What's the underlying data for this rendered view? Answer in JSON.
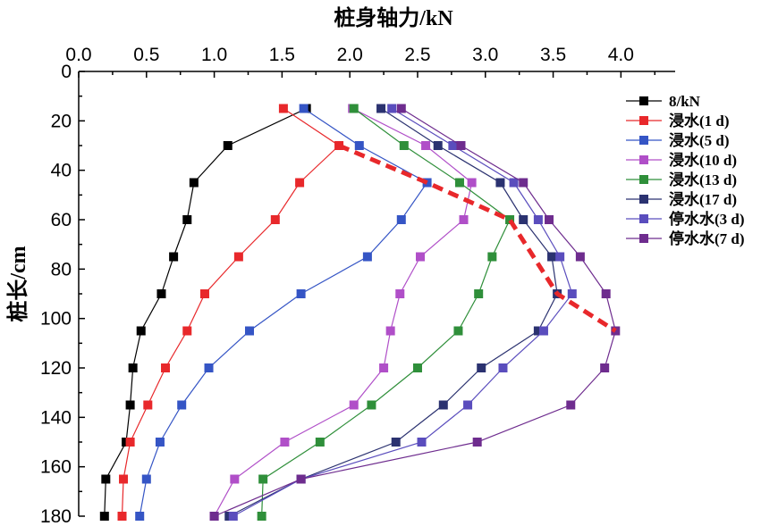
{
  "chart_data": {
    "type": "line",
    "xlabel": "桩身轴力/kN",
    "ylabel": "桩长/cm",
    "xlim": [
      0,
      4.4
    ],
    "ylim": [
      0,
      180
    ],
    "x_axis_position": "top",
    "y_axis_inverted": true,
    "x_ticks": [
      "0.0",
      "0.5",
      "1.0",
      "1.5",
      "2.0",
      "2.5",
      "3.0",
      "3.5",
      "4.0"
    ],
    "x_tick_values": [
      0,
      0.5,
      1.0,
      1.5,
      2.0,
      2.5,
      3.0,
      3.5,
      4.0
    ],
    "y_ticks": [
      "0",
      "20",
      "40",
      "60",
      "80",
      "100",
      "120",
      "140",
      "160",
      "180"
    ],
    "y_tick_values": [
      0,
      20,
      40,
      60,
      80,
      100,
      120,
      140,
      160,
      180
    ],
    "grid": false,
    "legend_position": "right",
    "series": [
      {
        "name": "8/kN",
        "color": "#000000",
        "points": [
          [
            1.68,
            15
          ],
          [
            1.1,
            30
          ],
          [
            0.85,
            45
          ],
          [
            0.8,
            60
          ],
          [
            0.7,
            75
          ],
          [
            0.61,
            90
          ],
          [
            0.46,
            105
          ],
          [
            0.4,
            120
          ],
          [
            0.38,
            135
          ],
          [
            0.35,
            150
          ],
          [
            0.2,
            165
          ],
          [
            0.19,
            180
          ]
        ]
      },
      {
        "name": "浸水(1 d)",
        "color": "#e8282b",
        "points": [
          [
            1.51,
            15
          ],
          [
            1.92,
            30
          ],
          [
            1.63,
            45
          ],
          [
            1.45,
            60
          ],
          [
            1.18,
            75
          ],
          [
            0.93,
            90
          ],
          [
            0.8,
            105
          ],
          [
            0.64,
            120
          ],
          [
            0.51,
            135
          ],
          [
            0.38,
            150
          ],
          [
            0.33,
            165
          ],
          [
            0.32,
            180
          ]
        ]
      },
      {
        "name": "浸水(5 d)",
        "color": "#3555c5",
        "points": [
          [
            1.66,
            15
          ],
          [
            2.07,
            30
          ],
          [
            2.57,
            45
          ],
          [
            2.38,
            60
          ],
          [
            2.13,
            75
          ],
          [
            1.64,
            90
          ],
          [
            1.26,
            105
          ],
          [
            0.96,
            120
          ],
          [
            0.76,
            135
          ],
          [
            0.6,
            150
          ],
          [
            0.5,
            165
          ],
          [
            0.45,
            180
          ]
        ]
      },
      {
        "name": "浸水(10 d)",
        "color": "#b04fc8",
        "points": [
          [
            2.02,
            15
          ],
          [
            2.56,
            30
          ],
          [
            2.9,
            45
          ],
          [
            2.84,
            60
          ],
          [
            2.52,
            75
          ],
          [
            2.37,
            90
          ],
          [
            2.3,
            105
          ],
          [
            2.25,
            120
          ],
          [
            2.03,
            135
          ],
          [
            1.52,
            150
          ],
          [
            1.15,
            165
          ],
          [
            1.0,
            180
          ]
        ]
      },
      {
        "name": "浸水(13 d)",
        "color": "#2f8f3a",
        "points": [
          [
            2.03,
            15
          ],
          [
            2.4,
            30
          ],
          [
            2.81,
            45
          ],
          [
            3.18,
            60
          ],
          [
            3.05,
            75
          ],
          [
            2.95,
            90
          ],
          [
            2.8,
            105
          ],
          [
            2.5,
            120
          ],
          [
            2.16,
            135
          ],
          [
            1.78,
            150
          ],
          [
            1.36,
            165
          ],
          [
            1.35,
            180
          ]
        ]
      },
      {
        "name": "浸水(17 d)",
        "color": "#2b3270",
        "points": [
          [
            2.23,
            15
          ],
          [
            2.65,
            30
          ],
          [
            3.11,
            45
          ],
          [
            3.28,
            60
          ],
          [
            3.49,
            75
          ],
          [
            3.53,
            90
          ],
          [
            3.39,
            105
          ],
          [
            2.97,
            120
          ],
          [
            2.69,
            135
          ],
          [
            2.34,
            150
          ],
          [
            1.64,
            165
          ],
          [
            1.11,
            180
          ]
        ]
      },
      {
        "name": "停水水(3 d)",
        "color": "#5a4dbd",
        "points": [
          [
            2.31,
            15
          ],
          [
            2.76,
            30
          ],
          [
            3.21,
            45
          ],
          [
            3.39,
            60
          ],
          [
            3.55,
            75
          ],
          [
            3.64,
            90
          ],
          [
            3.43,
            105
          ],
          [
            3.13,
            120
          ],
          [
            2.87,
            135
          ],
          [
            2.53,
            150
          ],
          [
            1.64,
            165
          ],
          [
            1.14,
            180
          ]
        ]
      },
      {
        "name": "停水水(7 d)",
        "color": "#6e2c8e",
        "points": [
          [
            2.38,
            15
          ],
          [
            2.82,
            30
          ],
          [
            3.28,
            45
          ],
          [
            3.47,
            60
          ],
          [
            3.7,
            75
          ],
          [
            3.89,
            90
          ],
          [
            3.96,
            105
          ],
          [
            3.88,
            120
          ],
          [
            3.63,
            135
          ],
          [
            2.94,
            150
          ],
          [
            1.64,
            165
          ],
          [
            1.0,
            180
          ]
        ]
      }
    ],
    "annotation_line": {
      "color": "#e8282b",
      "style": "dashed",
      "points": [
        [
          1.92,
          30
        ],
        [
          2.57,
          45
        ],
        [
          3.18,
          60
        ],
        [
          3.53,
          90
        ],
        [
          3.96,
          105
        ]
      ]
    }
  }
}
